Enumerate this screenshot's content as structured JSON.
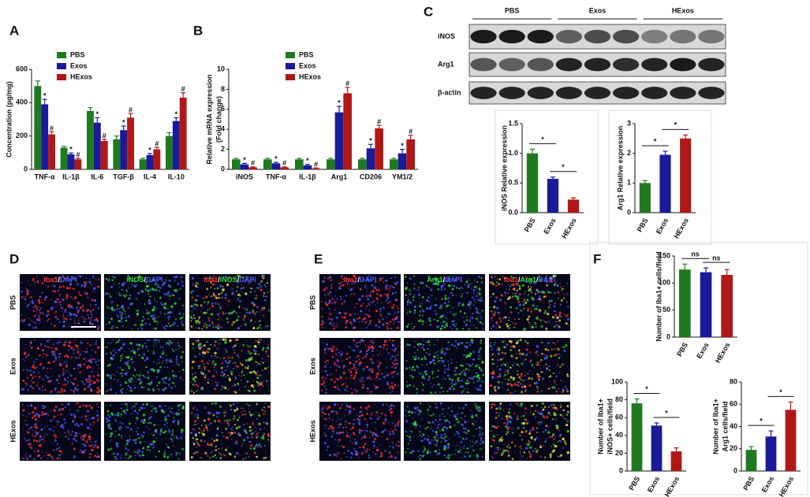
{
  "panels": {
    "a": "A",
    "b": "B",
    "c": "C",
    "d": "D",
    "e": "E",
    "f": "F"
  },
  "chart_data": [
    {
      "type": "bar",
      "y_label": "Concentration (pg/mg)",
      "categories": [
        "TNF-α",
        "IL-1β",
        "IL-6",
        "TGF-β",
        "IL-4",
        "IL-10"
      ],
      "series": [
        {
          "name": "PBS",
          "color": "#1f7a1f",
          "values": [
            500,
            130,
            350,
            180,
            60,
            200
          ],
          "errors": [
            30,
            8,
            20,
            20,
            6,
            20
          ]
        },
        {
          "name": "Exos",
          "color": "#1a1a9a",
          "values": [
            390,
            90,
            280,
            235,
            85,
            290
          ],
          "errors": [
            30,
            8,
            30,
            25,
            10,
            20
          ],
          "marks": [
            "*",
            "*",
            "*",
            "*",
            "*",
            "*"
          ]
        },
        {
          "name": "HExos",
          "color": "#b01818",
          "values": [
            210,
            60,
            170,
            310,
            120,
            430
          ],
          "errors": [
            15,
            6,
            10,
            25,
            12,
            30
          ],
          "marks": [
            "#",
            "#",
            "#",
            "#",
            "#",
            "#"
          ]
        }
      ],
      "ylim": [
        0,
        600
      ],
      "yticks": [
        0,
        200,
        400,
        600
      ],
      "legend": true
    },
    {
      "type": "bar",
      "y_label": [
        "Relative mRNA expression",
        "(Fold change)"
      ],
      "categories": [
        "iNOS",
        "TNF-α",
        "IL-1β",
        "Arg1",
        "CD206",
        "YM1/2"
      ],
      "series": [
        {
          "name": "PBS",
          "color": "#1f7a1f",
          "values": [
            1,
            1,
            1,
            1,
            1,
            1
          ],
          "errors": [
            0.1,
            0.1,
            0.1,
            0.1,
            0.1,
            0.1
          ]
        },
        {
          "name": "Exos",
          "color": "#1a1a9a",
          "values": [
            0.5,
            0.6,
            0.4,
            5.7,
            2.1,
            1.6
          ],
          "errors": [
            0.1,
            0.1,
            0.1,
            0.6,
            0.4,
            0.4
          ],
          "marks": [
            "*",
            "*",
            "*",
            "*",
            "*",
            "*"
          ]
        },
        {
          "name": "HExos",
          "color": "#b01818",
          "values": [
            0.2,
            0.2,
            0.1,
            7.6,
            4.1,
            3.0
          ],
          "errors": [
            0.05,
            0.05,
            0.05,
            0.6,
            0.3,
            0.4
          ],
          "marks": [
            "#",
            "#",
            "#",
            "#",
            "#",
            "#"
          ]
        }
      ],
      "ylim": [
        0,
        10
      ],
      "yticks": [
        0,
        2,
        4,
        6,
        8,
        10
      ],
      "legend": true
    },
    {
      "type": "bar",
      "y_label": "iNOS Relative expression",
      "categories": [
        "PBS",
        "Exos",
        "HExos"
      ],
      "values": [
        1.0,
        0.57,
        0.22
      ],
      "errors": [
        0.07,
        0.03,
        0.03
      ],
      "colors": [
        "#1f7a1f",
        "#1a1a9a",
        "#b01818"
      ],
      "ylim": [
        0,
        1.5
      ],
      "yticks": [
        {
          "value": 0,
          "label": "0.0"
        },
        0.5,
        {
          "value": 1,
          "label": "1.0"
        },
        1.5
      ],
      "brackets": [
        "*",
        "*"
      ]
    },
    {
      "type": "bar",
      "y_label": "Arg1 Relative expression",
      "categories": [
        "PBS",
        "Exos",
        "HExos"
      ],
      "values": [
        1.0,
        1.95,
        2.5
      ],
      "errors": [
        0.08,
        0.12,
        0.12
      ],
      "colors": [
        "#1f7a1f",
        "#1a1a9a",
        "#b01818"
      ],
      "ylim": [
        0,
        3
      ],
      "yticks": [
        0,
        1,
        2,
        3
      ],
      "brackets": [
        "*",
        "*"
      ]
    },
    {
      "type": "bar",
      "y_label": "Number of Iba1+ cells/field",
      "categories": [
        "PBS",
        "Exos",
        "HExos"
      ],
      "values": [
        125,
        120,
        115
      ],
      "errors": [
        10,
        8,
        10
      ],
      "colors": [
        "#1f7a1f",
        "#1a1a9a",
        "#b01818"
      ],
      "ylim": [
        0,
        150
      ],
      "yticks": [
        0,
        50,
        100,
        150
      ],
      "brackets": [
        "ns",
        "ns"
      ]
    },
    {
      "type": "bar",
      "y_label": [
        "Number of Iba1+",
        "iNOS+ cells/field"
      ],
      "categories": [
        "PBS",
        "Exos",
        "HExos"
      ],
      "values": [
        76,
        51,
        22
      ],
      "errors": [
        5,
        3,
        4
      ],
      "colors": [
        "#1f7a1f",
        "#1a1a9a",
        "#b01818"
      ],
      "ylim": [
        0,
        100
      ],
      "yticks": [
        0,
        20,
        40,
        60,
        80,
        100
      ],
      "brackets": [
        "*",
        "*"
      ]
    },
    {
      "type": "bar",
      "y_label": [
        "Number of Iba1+",
        "Arg1 cells/field"
      ],
      "categories": [
        "PBS",
        "Exos",
        "HExos"
      ],
      "values": [
        19,
        31,
        55
      ],
      "errors": [
        3,
        5,
        7
      ],
      "colors": [
        "#1f7a1f",
        "#1a1a9a",
        "#b01818"
      ],
      "ylim": [
        0,
        80
      ],
      "yticks": [
        0,
        20,
        40,
        60,
        80
      ],
      "brackets": [
        "*",
        "*"
      ]
    }
  ],
  "blot": {
    "groups": [
      "PBS",
      "Exos",
      "HExos"
    ],
    "rows": [
      "iNOS",
      "Arg1",
      "β-actin"
    ]
  },
  "micrographs": [
    {
      "rows": [
        "PBS",
        "Exos",
        "HExos"
      ],
      "columns": [
        [
          {
            "text": "Iba1",
            "color": "#ff3030"
          },
          {
            "text": "/",
            "color": "#ffffff"
          },
          {
            "text": "DAPI",
            "color": "#4a5cff"
          }
        ],
        [
          {
            "text": "iNOS",
            "color": "#30e030"
          },
          {
            "text": "/",
            "color": "#ffffff"
          },
          {
            "text": "DAPI",
            "color": "#4a5cff"
          }
        ],
        [
          {
            "text": "Iba1",
            "color": "#ff3030"
          },
          {
            "text": "/",
            "color": "#ffffff"
          },
          {
            "text": "iNOS",
            "color": "#30e030"
          },
          {
            "text": "/",
            "color": "#ffffff"
          },
          {
            "text": "DAPI",
            "color": "#4a5cff"
          }
        ]
      ],
      "scale_bar": "200um"
    },
    {
      "rows": [
        "PBS",
        "Exos",
        "HExos"
      ],
      "columns": [
        [
          {
            "text": "Iba1",
            "color": "#ff3030"
          },
          {
            "text": "/",
            "color": "#ffffff"
          },
          {
            "text": "DAPI",
            "color": "#4a5cff"
          }
        ],
        [
          {
            "text": "Arg1",
            "color": "#30e030"
          },
          {
            "text": "/",
            "color": "#ffffff"
          },
          {
            "text": "DAPI",
            "color": "#4a5cff"
          }
        ],
        [
          {
            "text": "Iba1",
            "color": "#ff3030"
          },
          {
            "text": "/",
            "color": "#ffffff"
          },
          {
            "text": "Arg1",
            "color": "#30e030"
          },
          {
            "text": "/",
            "color": "#ffffff"
          },
          {
            "text": "DAPI",
            "color": "#4a5cff"
          }
        ]
      ]
    }
  ]
}
